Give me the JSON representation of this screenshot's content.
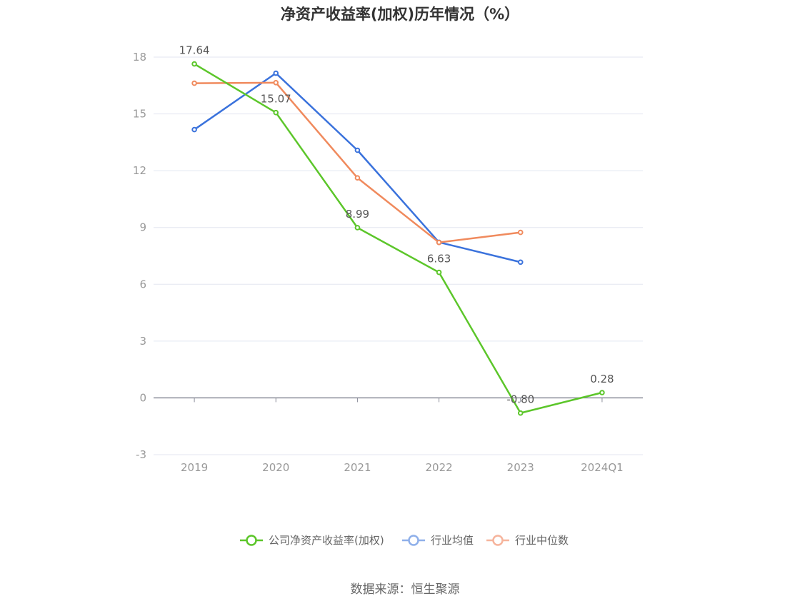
{
  "chart_data": {
    "type": "line",
    "title": "净资产收益率(加权)历年情况（%）",
    "categories": [
      "2019",
      "2020",
      "2021",
      "2022",
      "2023",
      "2024Q1"
    ],
    "ylim": [
      -3,
      18
    ],
    "yticks": [
      -3,
      0,
      3,
      6,
      9,
      12,
      15,
      18
    ],
    "grid": true,
    "legend_position": "bottom-center",
    "series": [
      {
        "name": "公司净资产收益率(加权)",
        "color": "#5cc62a",
        "values": [
          17.64,
          15.07,
          8.99,
          6.63,
          -0.8,
          0.28
        ],
        "labels": [
          "17.64",
          "15.07",
          "8.99",
          "6.63",
          "-0.80",
          "0.28"
        ]
      },
      {
        "name": "行业均值",
        "color": "#3a72dc",
        "values": [
          14.17,
          17.15,
          13.08,
          8.22,
          7.17,
          null
        ]
      },
      {
        "name": "行业中位数",
        "color": "#f08a5d",
        "values": [
          16.62,
          16.65,
          11.62,
          8.21,
          8.74,
          null
        ]
      }
    ],
    "legend_colors": [
      "#5cc62a",
      "#8fb0ea",
      "#f6b49c"
    ],
    "source": "数据来源：恒生聚源"
  }
}
